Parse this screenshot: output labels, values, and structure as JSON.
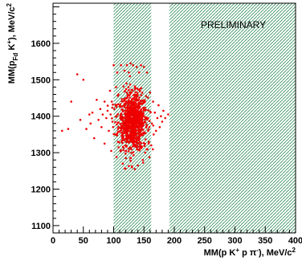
{
  "chart_data": {
    "type": "scatter",
    "title": "",
    "xlabel": "MM(p K⁺ p π⁻), MeV/c²",
    "ylabel": "MM(p_Fd K⁺), MeV/c²",
    "xlim": [
      0,
      400
    ],
    "ylim": [
      1080,
      1710
    ],
    "xticks": [
      0,
      50,
      100,
      150,
      200,
      250,
      300,
      350,
      400
    ],
    "yticks": [
      1100,
      1200,
      1300,
      1400,
      1500,
      1600
    ],
    "xtick_labels": [
      "0",
      "50",
      "100",
      "150",
      "200",
      "250",
      "300",
      "350",
      "400"
    ],
    "ytick_labels": [
      "1100",
      "1200",
      "1300",
      "1400",
      "1500",
      "1600"
    ],
    "marker_color": "#ee0000",
    "hatch_color": "#2e8b57",
    "shaded_regions": [
      {
        "xmin": 100,
        "xmax": 162
      },
      {
        "xmin": 192,
        "xmax": 400
      }
    ],
    "annotation": "PRELIMINARY",
    "grid": false,
    "cluster": {
      "center_x": 132,
      "center_y": 1385,
      "sx": 12,
      "sy": 38,
      "n": 900
    },
    "points": [
      [
        15,
        1360
      ],
      [
        25,
        1365
      ],
      [
        30,
        1440
      ],
      [
        40,
        1515
      ],
      [
        45,
        1390
      ],
      [
        50,
        1500
      ],
      [
        55,
        1365
      ],
      [
        60,
        1405
      ],
      [
        62,
        1380
      ],
      [
        65,
        1410
      ],
      [
        68,
        1340
      ],
      [
        72,
        1445
      ],
      [
        75,
        1390
      ],
      [
        78,
        1420
      ],
      [
        80,
        1370
      ],
      [
        82,
        1405
      ],
      [
        85,
        1325
      ],
      [
        85,
        1440
      ],
      [
        88,
        1395
      ],
      [
        90,
        1415
      ],
      [
        92,
        1360
      ],
      [
        94,
        1470
      ],
      [
        95,
        1405
      ],
      [
        96,
        1305
      ],
      [
        97,
        1440
      ],
      [
        98,
        1385
      ],
      [
        100,
        1540
      ],
      [
        101,
        1420
      ],
      [
        103,
        1350
      ],
      [
        104,
        1480
      ],
      [
        105,
        1400
      ],
      [
        106,
        1520
      ],
      [
        107,
        1330
      ],
      [
        108,
        1460
      ],
      [
        112,
        1540
      ],
      [
        115,
        1270
      ],
      [
        118,
        1525
      ],
      [
        120,
        1285
      ],
      [
        122,
        1540
      ],
      [
        125,
        1520
      ],
      [
        128,
        1545
      ],
      [
        130,
        1260
      ],
      [
        132,
        1540
      ],
      [
        135,
        1255
      ],
      [
        138,
        1535
      ],
      [
        140,
        1265
      ],
      [
        142,
        1520
      ],
      [
        145,
        1540
      ],
      [
        148,
        1280
      ],
      [
        150,
        1535
      ],
      [
        152,
        1300
      ],
      [
        155,
        1520
      ],
      [
        158,
        1330
      ],
      [
        160,
        1465
      ],
      [
        162,
        1320
      ],
      [
        163,
        1380
      ],
      [
        165,
        1440
      ],
      [
        166,
        1350
      ],
      [
        168,
        1410
      ],
      [
        170,
        1360
      ],
      [
        172,
        1395
      ],
      [
        174,
        1430
      ],
      [
        176,
        1370
      ],
      [
        178,
        1400
      ],
      [
        180,
        1385
      ],
      [
        182,
        1415
      ],
      [
        185,
        1395
      ],
      [
        190,
        1405
      ]
    ]
  }
}
